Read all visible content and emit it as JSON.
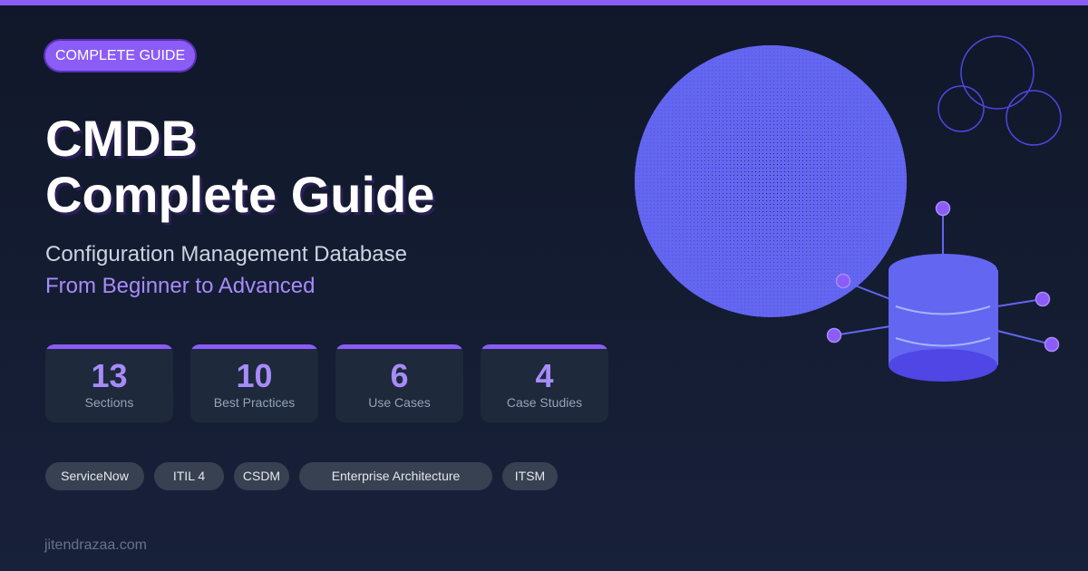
{
  "badge": "COMPLETE GUIDE",
  "title_line1": "CMDB",
  "title_line2": "Complete Guide",
  "subtitle": "Configuration Management Database",
  "tagline": "From Beginner to Advanced",
  "stats": [
    {
      "value": "13",
      "label": "Sections"
    },
    {
      "value": "10",
      "label": "Best Practices"
    },
    {
      "value": "6",
      "label": "Use Cases"
    },
    {
      "value": "4",
      "label": "Case Studies"
    }
  ],
  "tags": [
    "ServiceNow",
    "ITIL 4",
    "CSDM",
    "Enterprise Architecture",
    "ITSM"
  ],
  "footer": "jitendrazaa.com",
  "colors": {
    "accent": "#8b5cf6",
    "accent_light": "#a78bfa",
    "indigo": "#6366f1",
    "background": "#111827"
  }
}
